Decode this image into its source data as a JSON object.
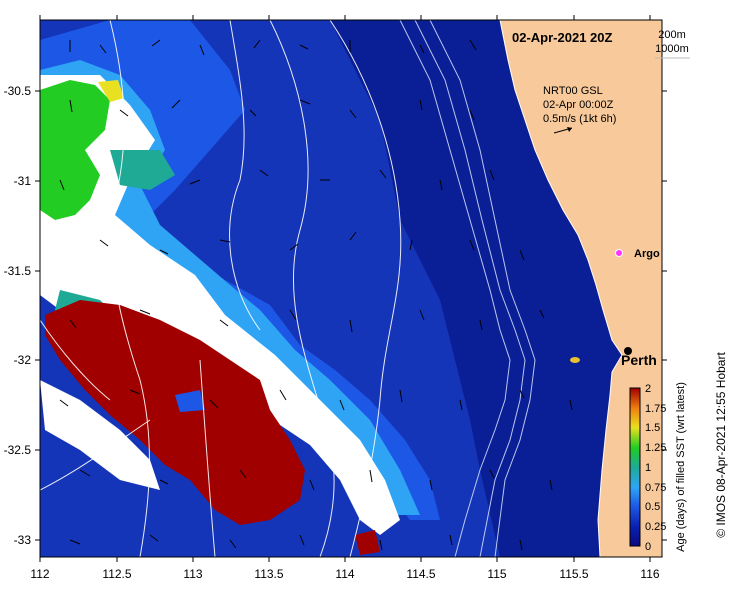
{
  "map": {
    "title": "02-Apr-2021 20Z",
    "depth_contours": [
      "200m",
      "1000m"
    ],
    "current_note": [
      "NRT00 GSL",
      "02-Apr 00:00Z",
      "0.5m/s (1kt 6h)"
    ],
    "places": {
      "argo": "Argo",
      "perth": "Perth"
    },
    "lon_ticks": [
      "112",
      "112.5",
      "113",
      "113.5",
      "114",
      "114.5",
      "115",
      "115.5",
      "116"
    ],
    "lat_ticks": [
      "-30.5",
      "-31",
      "-31.5",
      "-32",
      "-32.5",
      "-33"
    ],
    "colors": {
      "land": "#f8c99a",
      "ocean_dark": "#0a1f96",
      "ocean_mid": "#1d57e6",
      "ocean_light": "#2fa4f5",
      "teal": "#1faa95",
      "green": "#22cc22",
      "hot": "#a00000"
    }
  },
  "colorbar": {
    "label": "Age (days) of filled SST (wrt latest)",
    "ticks": [
      "2",
      "1.75",
      "1.5",
      "1.25",
      "1",
      "0.75",
      "0.5",
      "0.25",
      "0"
    ]
  },
  "credit": "© IMOS 08-Apr-2021 12:55 Hobart"
}
